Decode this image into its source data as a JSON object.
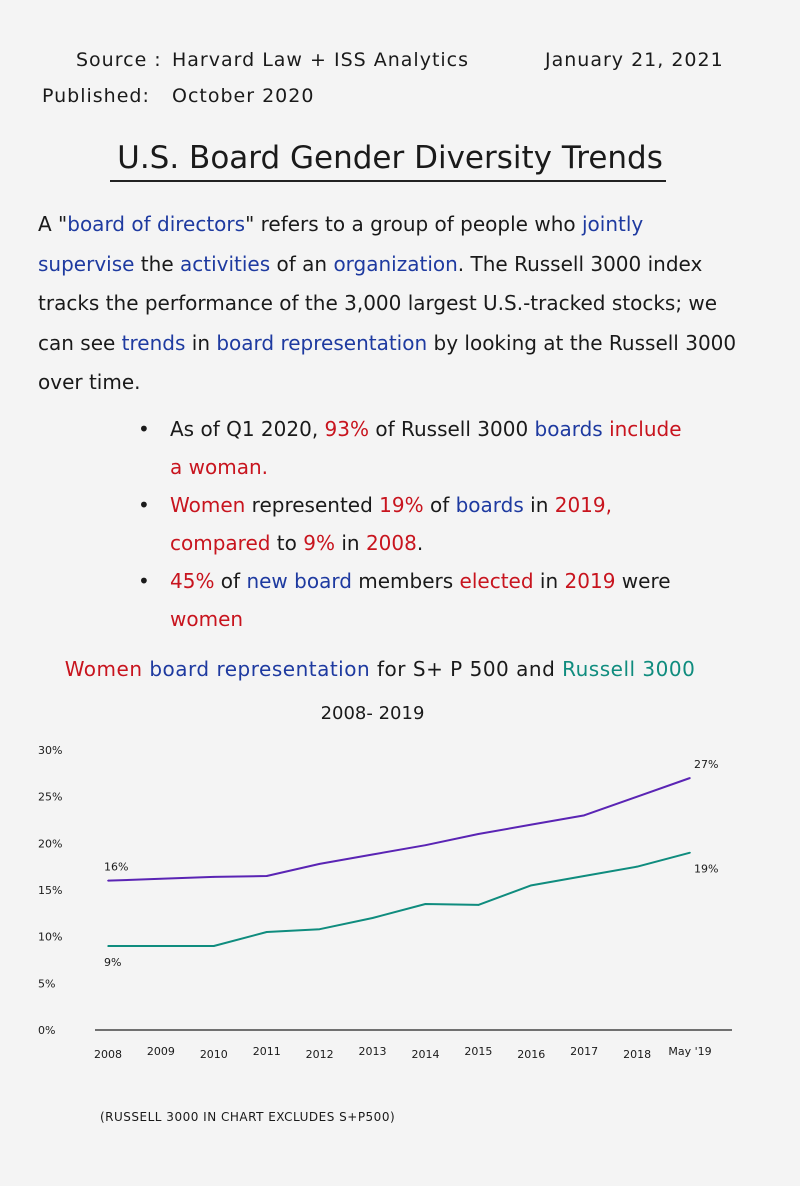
{
  "header": {
    "source_label": "Source :",
    "source_value": "Harvard Law + ISS Analytics",
    "date": "January 21, 2021",
    "published_label": "Published:",
    "published_value": "October 2020"
  },
  "title": "U.S. Board Gender Diversity Trends",
  "intro": [
    {
      "text": "A \"",
      "c": ""
    },
    {
      "text": "board of directors",
      "c": "blue"
    },
    {
      "text": "\" refers to a group of people who ",
      "c": ""
    },
    {
      "text": "jointly supervise",
      "c": "blue"
    },
    {
      "text": " the ",
      "c": ""
    },
    {
      "text": "activities",
      "c": "blue"
    },
    {
      "text": " of an ",
      "c": ""
    },
    {
      "text": "organization",
      "c": "blue"
    },
    {
      "text": ". The Russell 3000 index tracks the performance of the 3,000 largest U.S.-tracked stocks; we can see ",
      "c": ""
    },
    {
      "text": "trends",
      "c": "blue"
    },
    {
      "text": " in ",
      "c": ""
    },
    {
      "text": "board representation",
      "c": "blue"
    },
    {
      "text": " by looking at the Russell 3000 over time.",
      "c": ""
    }
  ],
  "bullets": [
    [
      {
        "text": "As of Q1 2020, ",
        "c": ""
      },
      {
        "text": "93%",
        "c": "red"
      },
      {
        "text": " of Russell 3000 ",
        "c": ""
      },
      {
        "text": "boards",
        "c": "blue"
      },
      {
        "text": " include a woman.",
        "c": "red"
      }
    ],
    [
      {
        "text": "Women",
        "c": "red"
      },
      {
        "text": " represented ",
        "c": ""
      },
      {
        "text": "19%",
        "c": "red"
      },
      {
        "text": " of ",
        "c": ""
      },
      {
        "text": "boards",
        "c": "blue"
      },
      {
        "text": " in ",
        "c": ""
      },
      {
        "text": "2019",
        "c": "red"
      },
      {
        "text": ", compared",
        "c": "red"
      },
      {
        "text": " to ",
        "c": ""
      },
      {
        "text": "9%",
        "c": "red"
      },
      {
        "text": " in ",
        "c": ""
      },
      {
        "text": "2008",
        "c": "red"
      },
      {
        "text": ".",
        "c": ""
      }
    ],
    [
      {
        "text": "45%",
        "c": "red"
      },
      {
        "text": " of ",
        "c": ""
      },
      {
        "text": "new board",
        "c": "blue"
      },
      {
        "text": " members ",
        "c": ""
      },
      {
        "text": "elected",
        "c": "red"
      },
      {
        "text": " in ",
        "c": ""
      },
      {
        "text": "2019",
        "c": "red"
      },
      {
        "text": " were ",
        "c": ""
      },
      {
        "text": "women",
        "c": "red"
      }
    ]
  ],
  "bullet_symbol": "•",
  "chart_title_parts": [
    {
      "text": "Women",
      "c": "red"
    },
    {
      "text": " board representation",
      "c": "blue"
    },
    {
      "text": " for S+ P 500 and ",
      "c": ""
    },
    {
      "text": "Russell 3000",
      "c": "teal"
    }
  ],
  "chart_data": {
    "type": "line",
    "title": "Women board representation for S+ P 500 and Russell 3000",
    "subtitle": "2008- 2019",
    "categories": [
      "2008",
      "2009",
      "2010",
      "2011",
      "2012",
      "2013",
      "2014",
      "2015",
      "2016",
      "2017",
      "2018",
      "May '19"
    ],
    "series": [
      {
        "values": [
          16,
          16.2,
          16.4,
          16.5,
          17.8,
          18.8,
          19.8,
          21,
          22,
          23,
          25,
          27
        ],
        "color": "#5a24b4"
      },
      {
        "values": [
          9,
          9,
          9,
          10.5,
          10.8,
          12,
          13.5,
          13.4,
          15.5,
          16.5,
          17.5,
          19
        ],
        "color": "#0f8c7e"
      }
    ],
    "y_ticks": [
      "0%",
      "5%",
      "10%",
      "15%",
      "20%",
      "25%",
      "30%"
    ],
    "ylim": [
      0,
      30
    ],
    "annotations": [
      {
        "text": "16%",
        "series": 0,
        "index": 0,
        "pos": "above"
      },
      {
        "text": "9%",
        "series": 1,
        "index": 0,
        "pos": "below"
      },
      {
        "text": "27%",
        "series": 0,
        "index": 11,
        "pos": "above"
      },
      {
        "text": "19%",
        "series": 1,
        "index": 11,
        "pos": "below"
      }
    ],
    "grid": false
  },
  "footnote": "(RUSSELL 3000 IN CHART EXCLUDES S+P500)"
}
